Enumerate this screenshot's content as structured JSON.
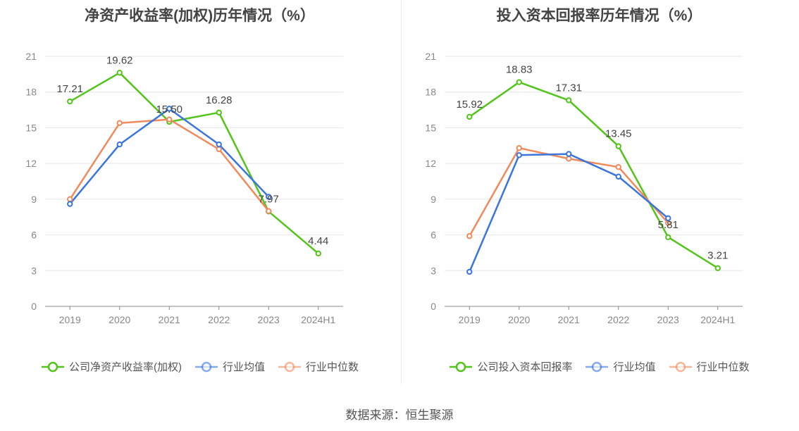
{
  "source_label": "数据来源：恒生聚源",
  "chart_data": [
    {
      "type": "line",
      "title": "净资产收益率(加权)历年情况（%）",
      "categories": [
        "2019",
        "2020",
        "2021",
        "2022",
        "2023",
        "2024H1"
      ],
      "y_ticks": [
        "0",
        "3",
        "6",
        "9",
        "12",
        "15",
        "18",
        "21"
      ],
      "ylim": [
        0,
        21
      ],
      "grid": true,
      "legend_position": "bottom",
      "series": [
        {
          "name": "公司净资产收益率(加权)",
          "color": "#52c41a",
          "values": [
            17.21,
            19.62,
            15.5,
            16.28,
            7.97,
            4.44
          ],
          "labels": [
            "17.21",
            "19.62",
            "15.50",
            "16.28",
            "7.97",
            "4.44"
          ]
        },
        {
          "name": "行业均值",
          "color": "#3a75dd",
          "values": [
            8.6,
            13.6,
            16.6,
            13.6,
            9.2,
            null
          ]
        },
        {
          "name": "行业中位数",
          "color": "#f08a5d",
          "values": [
            9.0,
            15.4,
            15.7,
            13.2,
            8.0,
            null
          ]
        }
      ]
    },
    {
      "type": "line",
      "title": "投入资本回报率历年情况（%）",
      "categories": [
        "2019",
        "2020",
        "2021",
        "2022",
        "2023",
        "2024H1"
      ],
      "y_ticks": [
        "0",
        "3",
        "6",
        "9",
        "12",
        "15",
        "18",
        "21"
      ],
      "ylim": [
        0,
        21
      ],
      "grid": true,
      "legend_position": "bottom",
      "series": [
        {
          "name": "公司投入资本回报率",
          "color": "#52c41a",
          "values": [
            15.92,
            18.83,
            17.31,
            13.45,
            5.81,
            3.21
          ],
          "labels": [
            "15.92",
            "18.83",
            "17.31",
            "13.45",
            "5.81",
            "3.21"
          ]
        },
        {
          "name": "行业均值",
          "color": "#3a75dd",
          "values": [
            2.9,
            12.7,
            12.8,
            10.9,
            7.4,
            null
          ]
        },
        {
          "name": "行业中位数",
          "color": "#f08a5d",
          "values": [
            5.9,
            13.3,
            12.4,
            11.7,
            7.0,
            null
          ]
        }
      ]
    }
  ]
}
